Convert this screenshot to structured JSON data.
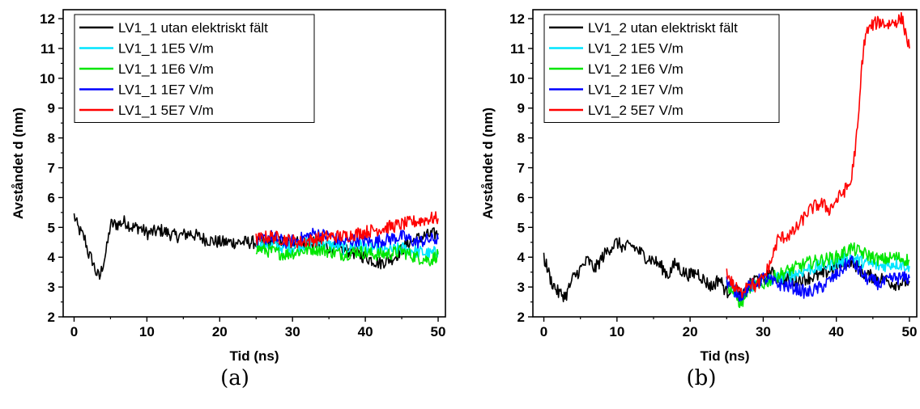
{
  "chart_data": [
    {
      "type": "line",
      "caption": "(a)",
      "xlabel": "Tid (ns)",
      "ylabel": "Avståndet d (nm)",
      "xlim": [
        -1.5,
        51
      ],
      "ylim": [
        2,
        12.3
      ],
      "xticks": [
        0,
        10,
        20,
        30,
        40,
        50
      ],
      "yticks": [
        2,
        3,
        4,
        5,
        6,
        7,
        8,
        9,
        10,
        11,
        12
      ],
      "legend": "top-left",
      "series": [
        {
          "name": "LV1_1 utan elektriskt fält",
          "color": "#000000",
          "x": [
            0,
            0.5,
            1,
            1.5,
            2,
            2.5,
            3,
            3.5,
            4,
            4.5,
            5,
            6,
            7,
            8,
            9,
            10,
            12,
            14,
            16,
            18,
            20,
            22,
            24,
            26,
            28,
            30,
            32,
            34,
            36,
            38,
            40,
            42,
            44,
            46,
            48,
            50
          ],
          "y": [
            5.4,
            5.0,
            4.8,
            4.6,
            4.1,
            3.9,
            3.5,
            3.3,
            3.8,
            4.3,
            5.1,
            5.1,
            5.2,
            5.0,
            5.0,
            4.8,
            4.9,
            4.7,
            4.8,
            4.6,
            4.5,
            4.5,
            4.5,
            4.5,
            4.5,
            4.5,
            4.5,
            4.4,
            4.3,
            4.2,
            4.0,
            3.8,
            4.0,
            4.5,
            4.7,
            4.8
          ]
        },
        {
          "name": "LV1_1 1E5 V/m",
          "color": "#00e5ff",
          "x": [
            25,
            27,
            29,
            31,
            33,
            35,
            37,
            39,
            41,
            43,
            45,
            47,
            49,
            50
          ],
          "y": [
            4.5,
            4.4,
            4.3,
            4.4,
            4.5,
            4.4,
            4.3,
            4.4,
            4.3,
            4.2,
            4.3,
            4.2,
            4.1,
            4.2
          ]
        },
        {
          "name": "LV1_1 1E6 V/m",
          "color": "#00e600",
          "x": [
            25,
            27,
            29,
            31,
            33,
            35,
            37,
            39,
            41,
            43,
            45,
            47,
            49,
            50
          ],
          "y": [
            4.3,
            4.2,
            4.1,
            4.2,
            4.3,
            4.2,
            4.1,
            4.2,
            4.1,
            4.1,
            4.2,
            4.0,
            3.9,
            4.1
          ]
        },
        {
          "name": "LV1_1 1E7 V/m",
          "color": "#0000ff",
          "x": [
            25,
            27,
            29,
            31,
            33,
            35,
            37,
            39,
            41,
            43,
            45,
            47,
            49,
            50
          ],
          "y": [
            4.5,
            4.7,
            4.5,
            4.6,
            4.8,
            4.7,
            4.5,
            4.6,
            4.5,
            4.6,
            4.7,
            4.5,
            4.6,
            4.6
          ]
        },
        {
          "name": "LV1_1 5E7 V/m",
          "color": "#ff0000",
          "x": [
            25,
            27,
            29,
            31,
            33,
            35,
            37,
            39,
            41,
            43,
            45,
            47,
            49,
            50
          ],
          "y": [
            4.6,
            4.7,
            4.6,
            4.5,
            4.6,
            4.7,
            4.7,
            4.8,
            4.9,
            5.0,
            5.1,
            5.2,
            5.3,
            5.3
          ]
        }
      ]
    },
    {
      "type": "line",
      "caption": "(b)",
      "xlabel": "Tid (ns)",
      "ylabel": "Avståndet d (nm)",
      "xlim": [
        -1.5,
        51
      ],
      "ylim": [
        2,
        12.3
      ],
      "xticks": [
        0,
        10,
        20,
        30,
        40,
        50
      ],
      "yticks": [
        2,
        3,
        4,
        5,
        6,
        7,
        8,
        9,
        10,
        11,
        12
      ],
      "legend": "top-left",
      "series": [
        {
          "name": "LV1_2 utan elektriskt fält",
          "color": "#000000",
          "x": [
            0,
            1,
            2,
            3,
            4,
            5,
            6,
            7,
            8,
            9,
            10,
            11,
            12,
            13,
            14,
            15,
            16,
            17,
            18,
            19,
            20,
            21,
            22,
            23,
            24,
            25,
            26,
            27,
            28,
            29,
            30,
            31,
            32,
            34,
            36,
            38,
            40,
            42,
            44,
            46,
            48,
            50
          ],
          "y": [
            4.0,
            3.2,
            2.8,
            2.7,
            3.3,
            3.6,
            3.9,
            3.6,
            4.0,
            4.3,
            4.5,
            4.3,
            4.4,
            4.2,
            4.0,
            3.9,
            3.7,
            3.4,
            3.8,
            3.5,
            3.4,
            3.5,
            3.2,
            3.0,
            3.3,
            2.8,
            3.1,
            2.6,
            3.0,
            3.3,
            3.2,
            3.5,
            3.3,
            3.2,
            3.3,
            3.4,
            3.7,
            3.9,
            3.4,
            3.3,
            3.1,
            3.2
          ]
        },
        {
          "name": "LV1_2 1E5 V/m",
          "color": "#00e5ff",
          "x": [
            25,
            26,
            27,
            28,
            30,
            32,
            34,
            36,
            38,
            40,
            42,
            44,
            46,
            48,
            50
          ],
          "y": [
            3.0,
            2.9,
            2.6,
            3.0,
            3.2,
            3.3,
            3.4,
            3.6,
            3.7,
            3.8,
            4.0,
            3.8,
            3.7,
            3.8,
            3.7
          ]
        },
        {
          "name": "LV1_2 1E6 V/m",
          "color": "#00e600",
          "x": [
            25,
            26,
            27,
            28,
            30,
            32,
            34,
            36,
            38,
            40,
            42,
            44,
            46,
            48,
            50
          ],
          "y": [
            3.1,
            2.8,
            2.4,
            3.0,
            3.1,
            3.4,
            3.6,
            3.8,
            3.9,
            4.0,
            4.3,
            4.1,
            3.9,
            4.0,
            3.9
          ]
        },
        {
          "name": "LV1_2 1E7 V/m",
          "color": "#0000ff",
          "x": [
            25,
            26,
            27,
            28,
            30,
            32,
            34,
            36,
            38,
            40,
            42,
            44,
            46,
            48,
            50
          ],
          "y": [
            3.2,
            2.9,
            2.7,
            3.0,
            3.3,
            3.1,
            3.0,
            2.8,
            3.0,
            3.4,
            3.9,
            3.3,
            3.1,
            3.3,
            3.3
          ]
        },
        {
          "name": "LV1_2 5E7 V/m",
          "color": "#ff0000",
          "x": [
            25,
            26,
            27,
            28,
            29,
            30,
            31,
            32,
            33,
            34,
            35,
            36,
            37,
            38,
            39,
            40,
            41,
            42,
            43,
            43.5,
            44,
            45,
            46,
            47,
            48,
            49,
            50
          ],
          "y": [
            3.5,
            3.0,
            2.8,
            3.2,
            3.0,
            3.3,
            3.8,
            4.6,
            4.7,
            4.8,
            5.1,
            5.5,
            5.7,
            5.8,
            5.6,
            5.9,
            6.2,
            6.5,
            8.5,
            10.5,
            11.5,
            11.8,
            11.9,
            11.8,
            11.9,
            12.0,
            11.0
          ]
        }
      ]
    }
  ]
}
